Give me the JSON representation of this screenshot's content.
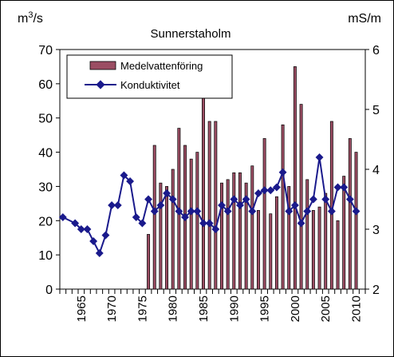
{
  "chart_data": {
    "type": "bar+line",
    "title": "Sunnerstaholm",
    "y_left_unit": "m3/s",
    "y_right_unit": "mS/m",
    "y_left_ticks": [
      "0",
      "10",
      "20",
      "30",
      "40",
      "50",
      "60",
      "70"
    ],
    "y_right_ticks": [
      "2",
      "3",
      "4",
      "5",
      "6"
    ],
    "ylim_left": [
      0,
      70
    ],
    "ylim_right": [
      2,
      6
    ],
    "xlim": [
      1962,
      2011
    ],
    "x_tick_labels": [
      "1965",
      "1970",
      "1975",
      "1980",
      "1985",
      "1990",
      "1995",
      "2000",
      "2005",
      "2010"
    ],
    "legend": {
      "position": "top-left",
      "bar_label": "Medelvattenföring",
      "line_label": "Konduktivitet"
    },
    "colors": {
      "bar": "#9b4d63",
      "line": "#1a1a8c"
    },
    "series": [
      {
        "name": "Medelvattenföring",
        "axis": "left",
        "type": "bar",
        "x": [
          1976,
          1977,
          1978,
          1979,
          1980,
          1981,
          1982,
          1983,
          1984,
          1985,
          1986,
          1987,
          1988,
          1989,
          1990,
          1991,
          1992,
          1993,
          1994,
          1995,
          1996,
          1997,
          1998,
          1999,
          2000,
          2001,
          2002,
          2003,
          2004,
          2005,
          2006,
          2007,
          2008,
          2009,
          2010
        ],
        "values": [
          16,
          42,
          31,
          30,
          35,
          47,
          42,
          38,
          40,
          57,
          49,
          49,
          31,
          32,
          34,
          34,
          31,
          36,
          23,
          44,
          22,
          27,
          48,
          30,
          65,
          54,
          32,
          23,
          24,
          28,
          49,
          20,
          33,
          44,
          40
        ]
      },
      {
        "name": "Konduktivitet",
        "axis": "right",
        "type": "line",
        "x": [
          1962,
          1964,
          1965,
          1966,
          1967,
          1968,
          1969,
          1970,
          1971,
          1972,
          1973,
          1974,
          1975,
          1976,
          1977,
          1978,
          1979,
          1980,
          1981,
          1982,
          1983,
          1984,
          1985,
          1986,
          1987,
          1988,
          1989,
          1990,
          1991,
          1992,
          1993,
          1994,
          1995,
          1996,
          1997,
          1998,
          1999,
          2000,
          2001,
          2002,
          2003,
          2004,
          2005,
          2006,
          2007,
          2008,
          2009,
          2010
        ],
        "values": [
          3.2,
          3.1,
          3.0,
          3.0,
          2.8,
          2.6,
          2.9,
          3.4,
          3.4,
          3.9,
          3.8,
          3.2,
          3.1,
          3.5,
          3.3,
          3.4,
          3.6,
          3.5,
          3.3,
          3.2,
          3.3,
          3.3,
          3.1,
          3.1,
          3.0,
          3.4,
          3.3,
          3.5,
          3.4,
          3.5,
          3.3,
          3.6,
          3.65,
          3.65,
          3.7,
          3.95,
          3.3,
          3.4,
          3.1,
          3.3,
          3.5,
          4.2,
          3.5,
          3.3,
          3.7,
          3.7,
          3.5,
          3.3
        ]
      }
    ]
  }
}
